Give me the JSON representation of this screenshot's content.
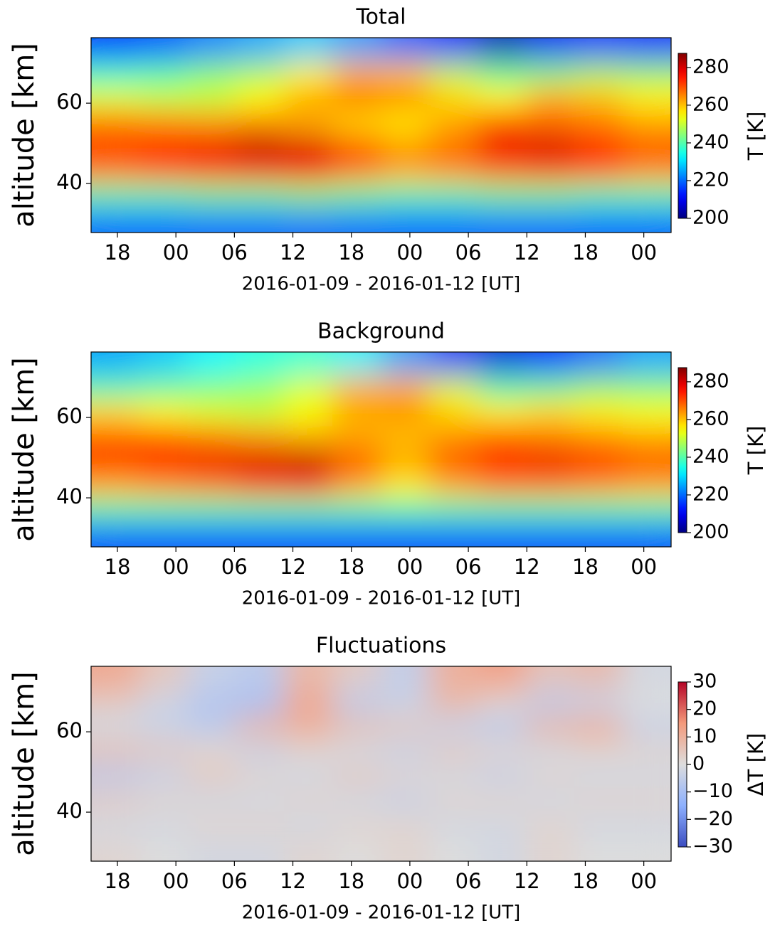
{
  "chart_data": [
    {
      "type": "heatmap",
      "title": "Total",
      "xlabel": "2016-01-09 - 2016-01-12 [UT]",
      "ylabel": "altitude [km]",
      "colorbar_label": "T [K]",
      "colormap": "jet",
      "xlim": [
        15.3,
        74.8
      ],
      "xticks": [
        {
          "value": 18,
          "label": "18"
        },
        {
          "value": 24,
          "label": "00"
        },
        {
          "value": 30,
          "label": "06"
        },
        {
          "value": 36,
          "label": "12"
        },
        {
          "value": 42,
          "label": "18"
        },
        {
          "value": 48,
          "label": "00"
        },
        {
          "value": 54,
          "label": "06"
        },
        {
          "value": 60,
          "label": "12"
        },
        {
          "value": 66,
          "label": "18"
        },
        {
          "value": 72,
          "label": "00"
        }
      ],
      "ylim": [
        27.8,
        76.3
      ],
      "yticks": [
        40,
        60
      ],
      "clim": [
        200,
        287.5
      ],
      "cticks": [
        200,
        220,
        240,
        260,
        280
      ],
      "z": [
        [
          215,
          218,
          222,
          225,
          228,
          225,
          220,
          212,
          205,
          210,
          215,
          212
        ],
        [
          238,
          240,
          245,
          248,
          255,
          262,
          260,
          250,
          242,
          244,
          248,
          246
        ],
        [
          252,
          250,
          250,
          255,
          262,
          266,
          265,
          258,
          255,
          262,
          260,
          256
        ],
        [
          266,
          265,
          264,
          265,
          262,
          258,
          256,
          262,
          270,
          268,
          266,
          262
        ],
        [
          272,
          276,
          278,
          282,
          280,
          270,
          264,
          268,
          278,
          280,
          276,
          270
        ],
        [
          266,
          268,
          270,
          272,
          274,
          266,
          262,
          264,
          268,
          270,
          268,
          264
        ],
        [
          240,
          240,
          242,
          242,
          244,
          242,
          240,
          240,
          242,
          242,
          240,
          240
        ],
        [
          220,
          220,
          220,
          220,
          220,
          220,
          220,
          220,
          220,
          220,
          220,
          220
        ]
      ]
    },
    {
      "type": "heatmap",
      "title": "Background",
      "xlabel": "2016-01-09 - 2016-01-12 [UT]",
      "ylabel": "altitude [km]",
      "colorbar_label": "T [K]",
      "colormap": "jet",
      "xlim": [
        15.3,
        74.8
      ],
      "xticks": [
        {
          "value": 18,
          "label": "18"
        },
        {
          "value": 24,
          "label": "00"
        },
        {
          "value": 30,
          "label": "06"
        },
        {
          "value": 36,
          "label": "12"
        },
        {
          "value": 42,
          "label": "18"
        },
        {
          "value": 48,
          "label": "00"
        },
        {
          "value": 54,
          "label": "06"
        },
        {
          "value": 60,
          "label": "12"
        },
        {
          "value": 66,
          "label": "18"
        },
        {
          "value": 72,
          "label": "00"
        }
      ],
      "ylim": [
        27.8,
        76.3
      ],
      "yticks": [
        40,
        60
      ],
      "clim": [
        200,
        287.5
      ],
      "cticks": [
        200,
        220,
        240,
        260,
        280
      ],
      "z": [
        [
          225,
          228,
          232,
          235,
          236,
          232,
          225,
          215,
          208,
          212,
          220,
          225
        ],
        [
          240,
          242,
          244,
          246,
          252,
          262,
          262,
          252,
          240,
          242,
          246,
          245
        ],
        [
          258,
          255,
          252,
          250,
          254,
          262,
          264,
          258,
          256,
          258,
          256,
          254
        ],
        [
          268,
          268,
          266,
          264,
          262,
          262,
          260,
          264,
          268,
          266,
          264,
          262
        ],
        [
          272,
          275,
          278,
          280,
          282,
          270,
          262,
          270,
          276,
          278,
          274,
          270
        ],
        [
          262,
          264,
          266,
          270,
          272,
          262,
          256,
          262,
          266,
          266,
          264,
          262
        ],
        [
          240,
          240,
          240,
          240,
          240,
          240,
          240,
          240,
          240,
          240,
          240,
          240
        ],
        [
          218,
          218,
          218,
          218,
          218,
          218,
          218,
          218,
          218,
          218,
          218,
          218
        ]
      ]
    },
    {
      "type": "heatmap",
      "title": "Fluctuations",
      "xlabel": "2016-01-09 - 2016-01-12 [UT]",
      "ylabel": "altitude [km]",
      "colorbar_label": "ΔT [K]",
      "colormap": "coolwarm",
      "xlim": [
        15.3,
        74.8
      ],
      "xticks": [
        {
          "value": 18,
          "label": "18"
        },
        {
          "value": 24,
          "label": "00"
        },
        {
          "value": 30,
          "label": "06"
        },
        {
          "value": 36,
          "label": "12"
        },
        {
          "value": 42,
          "label": "18"
        },
        {
          "value": 48,
          "label": "00"
        },
        {
          "value": 54,
          "label": "06"
        },
        {
          "value": 60,
          "label": "12"
        },
        {
          "value": 66,
          "label": "18"
        },
        {
          "value": 72,
          "label": "00"
        }
      ],
      "ylim": [
        27.8,
        76.3
      ],
      "yticks": [
        40,
        60
      ],
      "clim": [
        -30,
        30
      ],
      "cticks": [
        {
          "value": -30,
          "label": "−30"
        },
        {
          "value": -20,
          "label": "−20"
        },
        {
          "value": -10,
          "label": "−10"
        },
        0,
        10,
        20,
        30
      ],
      "z": [
        [
          12,
          5,
          -4,
          -6,
          8,
          4,
          -5,
          10,
          14,
          6,
          8,
          -2
        ],
        [
          4,
          -3,
          -8,
          -10,
          12,
          -6,
          -4,
          8,
          2,
          -6,
          -4,
          0
        ],
        [
          -2,
          -4,
          -6,
          8,
          10,
          6,
          4,
          -4,
          -6,
          8,
          10,
          -4
        ],
        [
          6,
          4,
          2,
          -4,
          2,
          -2,
          -4,
          4,
          2,
          -2,
          2,
          2
        ],
        [
          -6,
          -4,
          4,
          2,
          -2,
          4,
          2,
          -2,
          -4,
          2,
          -2,
          -2
        ],
        [
          4,
          2,
          -2,
          -2,
          2,
          -2,
          -4,
          2,
          2,
          -2,
          2,
          2
        ],
        [
          -2,
          -2,
          2,
          2,
          -2,
          2,
          2,
          -2,
          -2,
          2,
          -2,
          -2
        ],
        [
          2,
          0,
          -2,
          -2,
          2,
          0,
          2,
          0,
          -2,
          2,
          0,
          0
        ]
      ]
    }
  ]
}
